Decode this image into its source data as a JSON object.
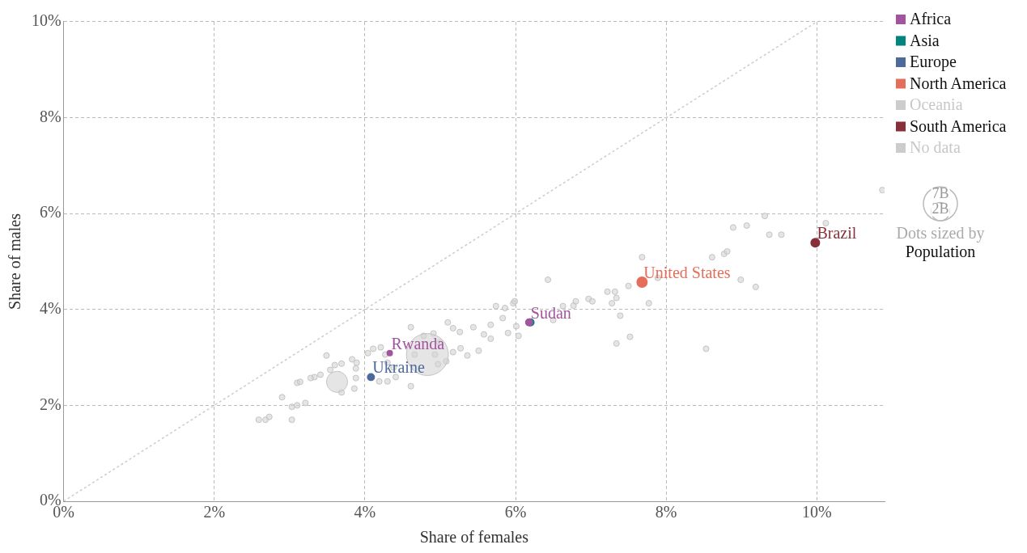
{
  "chart_data": {
    "type": "bubble",
    "xlabel": "Share of females",
    "ylabel": "Share of males",
    "xlim": [
      0,
      10.9
    ],
    "ylim": [
      0,
      10
    ],
    "xticks": [
      {
        "value": 0,
        "label": "0%"
      },
      {
        "value": 2,
        "label": "2%"
      },
      {
        "value": 4,
        "label": "4%"
      },
      {
        "value": 6,
        "label": "6%"
      },
      {
        "value": 8,
        "label": "8%"
      },
      {
        "value": 10,
        "label": "10%"
      }
    ],
    "yticks": [
      {
        "value": 0,
        "label": "0%"
      },
      {
        "value": 2,
        "label": "2%"
      },
      {
        "value": 4,
        "label": "4%"
      },
      {
        "value": 6,
        "label": "6%"
      },
      {
        "value": 8,
        "label": "8%"
      },
      {
        "value": 10,
        "label": "10%"
      }
    ],
    "grid": true,
    "legend": "right",
    "line_style": "dotted",
    "size_legend": [
      {
        "value": 7,
        "label": "7B"
      },
      {
        "value": 2,
        "label": "2B"
      }
    ],
    "series": [
      {
        "color": "#d3d3d3",
        "x": [
          2.59,
          2.68,
          2.73,
          3.03,
          2.9,
          3.03,
          3.1,
          3.21,
          3.33,
          3.41,
          3.54,
          3.6,
          3.69,
          3.83,
          3.89,
          3.88,
          3.88,
          3.69,
          3.86,
          3.49,
          3.1,
          3.14,
          3.28,
          4.04,
          4.11,
          4.21,
          4.27,
          4.3,
          4.38,
          4.19,
          4.3,
          4.41,
          4.61,
          4.61,
          4.66,
          4.93,
          4.97,
          5.08,
          5.17,
          5.27,
          5.36,
          5.1,
          5.17,
          5.44,
          5.67,
          5.58,
          5.67,
          4.78,
          4.91,
          4.99,
          5.26,
          5.51,
          5.74,
          5.83,
          5.9,
          6.01,
          5.97,
          6.43,
          6.63,
          6.77,
          6.8,
          6.97,
          7.02,
          7.22,
          7.32,
          7.34,
          7.28,
          7.39,
          7.52,
          7.34,
          7.5,
          7.68,
          7.77,
          7.89,
          8.61,
          8.77,
          8.81,
          8.89,
          9.07,
          9.31,
          9.37,
          9.53,
          10.12,
          10.87,
          8.99,
          9.19,
          8.53,
          5.86,
          5.99,
          6.04,
          6.5,
          3.63,
          4.83
        ],
        "values": [
          1.7,
          1.7,
          1.76,
          1.7,
          2.17,
          1.97,
          2.0,
          2.05,
          2.59,
          2.64,
          2.74,
          2.84,
          2.87,
          2.96,
          2.89,
          2.77,
          2.57,
          2.27,
          2.35,
          3.04,
          2.47,
          2.49,
          2.57,
          3.09,
          3.18,
          3.21,
          3.06,
          2.89,
          2.79,
          2.5,
          2.5,
          2.59,
          2.4,
          3.63,
          3.06,
          3.06,
          2.86,
          2.92,
          3.11,
          3.19,
          3.04,
          3.73,
          3.61,
          3.63,
          3.68,
          3.48,
          3.39,
          3.45,
          3.5,
          3.31,
          3.53,
          3.14,
          4.07,
          3.82,
          3.51,
          3.65,
          4.13,
          4.62,
          4.07,
          4.08,
          4.17,
          4.22,
          4.17,
          4.37,
          4.37,
          4.24,
          4.13,
          3.87,
          3.43,
          3.29,
          4.49,
          5.09,
          4.13,
          4.66,
          5.09,
          5.16,
          5.21,
          5.71,
          5.75,
          5.95,
          5.56,
          5.56,
          5.8,
          6.49,
          4.62,
          4.47,
          3.18,
          4.03,
          4.17,
          3.45,
          3.78,
          2.49,
          3.06
        ],
        "sizes": [
          0.2,
          0.2,
          0.2,
          0.2,
          0.2,
          0.2,
          0.2,
          0.2,
          0.2,
          0.2,
          0.2,
          0.2,
          0.2,
          0.2,
          0.2,
          0.2,
          0.2,
          0.2,
          0.2,
          0.2,
          0.2,
          0.2,
          0.2,
          0.2,
          0.2,
          0.2,
          0.2,
          0.2,
          0.2,
          0.2,
          0.2,
          0.2,
          0.2,
          0.2,
          0.2,
          0.2,
          0.2,
          0.2,
          0.2,
          0.2,
          0.2,
          0.2,
          0.2,
          0.2,
          0.2,
          0.2,
          0.2,
          0.2,
          0.2,
          0.2,
          0.2,
          0.2,
          0.2,
          0.2,
          0.2,
          0.2,
          0.2,
          0.2,
          0.2,
          0.2,
          0.2,
          0.2,
          0.2,
          0.2,
          0.2,
          0.2,
          0.2,
          0.2,
          0.2,
          0.2,
          0.2,
          0.2,
          0.2,
          0.2,
          0.2,
          0.2,
          0.2,
          0.2,
          0.2,
          0.2,
          0.2,
          0.2,
          0.2,
          0.2,
          0.2,
          0.2,
          0.2,
          0.2,
          0.2,
          0.2,
          0.2,
          2.7,
          10.7
        ]
      },
      {
        "name": "Africa",
        "color": "#a2559c",
        "x": [
          4.33,
          6.18
        ],
        "values": [
          3.09,
          3.73
        ],
        "sizes": [
          0.14,
          0.25
        ]
      },
      {
        "name": "Asia",
        "color": "#00847e",
        "x": [
          6.2
        ],
        "values": [
          3.73
        ],
        "sizes": [
          0.25
        ]
      },
      {
        "name": "Europe",
        "color": "#4c6a9c",
        "x": [
          4.08
        ],
        "values": [
          2.59
        ],
        "sizes": [
          0.25
        ]
      },
      {
        "name": "North America",
        "color": "#e56e5a",
        "x": [
          7.68
        ],
        "values": [
          4.57
        ],
        "sizes": [
          0.57
        ]
      },
      {
        "name": "Oceania",
        "color": "#cccccc"
      },
      {
        "name": "South America",
        "color": "#883039",
        "x": [
          9.98
        ],
        "values": [
          5.39
        ],
        "sizes": [
          0.4
        ]
      },
      {
        "name": "No data",
        "color": "#cccccc"
      },
      {
        "type": "line",
        "color": "#cccccc",
        "x": [
          0,
          10
        ],
        "values": [
          0,
          10
        ]
      }
    ],
    "annotations": [
      {
        "text": "Rwanda",
        "x": 4.33,
        "y": 3.09
      },
      {
        "text": "Ukraine",
        "x": 4.08,
        "y": 2.59
      },
      {
        "text": "Sudan",
        "x": 6.18,
        "y": 3.73
      },
      {
        "text": "United States",
        "x": 7.68,
        "y": 4.57
      },
      {
        "text": "Brazil",
        "x": 9.98,
        "y": 5.39
      },
      "Dots sized by",
      "Population"
    ]
  }
}
